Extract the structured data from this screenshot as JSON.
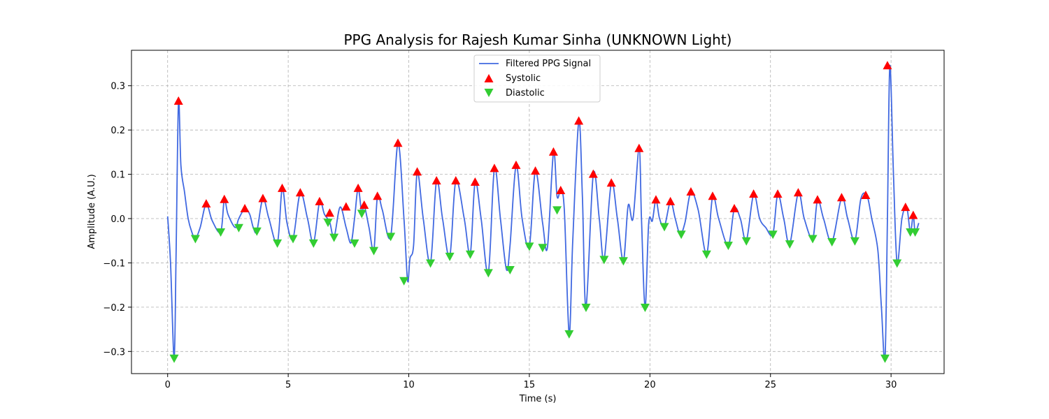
{
  "chart_data": {
    "type": "line",
    "title": "PPG Analysis for Rajesh Kumar Sinha (UNKNOWN Light)",
    "xlabel": "Time (s)",
    "ylabel": "Amplitude (A.U.)",
    "xlim": [
      -1.5,
      32.2
    ],
    "ylim": [
      -0.35,
      0.38
    ],
    "xticks": [
      0,
      5,
      10,
      15,
      20,
      25,
      30
    ],
    "yticks": [
      -0.3,
      -0.2,
      -0.1,
      0.0,
      0.1,
      0.2,
      0.3
    ],
    "xtick_labels": [
      "0",
      "5",
      "10",
      "15",
      "20",
      "25",
      "30"
    ],
    "ytick_labels": [
      "−0.3",
      "−0.2",
      "−0.1",
      "0.0",
      "0.1",
      "0.2",
      "0.3"
    ],
    "grid": true,
    "legend_position": "top-center",
    "colors": {
      "signal": "#4169e1",
      "systolic": "#ff0000",
      "diastolic": "#32cd32"
    },
    "series": [
      {
        "name": "Filtered PPG Signal",
        "kind": "line",
        "x": [
          0.0,
          0.12,
          0.27,
          0.35,
          0.45,
          0.55,
          0.7,
          0.85,
          1.0,
          1.15,
          1.35,
          1.6,
          1.85,
          2.2,
          2.35,
          2.5,
          2.8,
          2.95,
          3.2,
          3.4,
          3.55,
          3.7,
          3.95,
          4.2,
          4.55,
          4.75,
          4.95,
          5.2,
          5.5,
          5.8,
          6.05,
          6.3,
          6.5,
          6.72,
          6.9,
          7.15,
          7.4,
          7.6,
          7.75,
          7.9,
          8.05,
          8.15,
          8.35,
          8.55,
          8.7,
          8.9,
          9.25,
          9.55,
          9.8,
          9.95,
          10.05,
          10.2,
          10.35,
          10.6,
          10.9,
          11.15,
          11.4,
          11.7,
          11.95,
          12.3,
          12.55,
          12.75,
          13.0,
          13.3,
          13.55,
          13.8,
          14.05,
          14.2,
          14.45,
          14.7,
          15.0,
          15.25,
          15.55,
          15.75,
          16.0,
          16.15,
          16.3,
          16.45,
          16.65,
          16.8,
          17.05,
          17.2,
          17.35,
          17.65,
          17.9,
          18.1,
          18.4,
          18.65,
          18.9,
          19.1,
          19.3,
          19.55,
          19.65,
          19.8,
          19.95,
          20.1,
          20.25,
          20.4,
          20.6,
          20.85,
          21.05,
          21.25,
          21.45,
          21.7,
          22.0,
          22.35,
          22.6,
          22.85,
          23.25,
          23.5,
          23.75,
          24.0,
          24.3,
          24.55,
          24.8,
          25.1,
          25.3,
          25.55,
          25.8,
          26.15,
          26.4,
          26.75,
          26.95,
          27.2,
          27.55,
          27.95,
          28.2,
          28.5,
          28.75,
          29.0,
          29.2,
          29.45,
          29.6,
          29.75,
          29.85,
          29.95,
          30.1,
          30.25,
          30.45,
          30.65,
          30.8,
          30.92,
          31.0,
          31.15
        ],
        "y": [
          0.005,
          -0.1,
          -0.315,
          -0.08,
          0.265,
          0.12,
          0.06,
          0.0,
          -0.03,
          -0.045,
          -0.02,
          0.033,
          -0.005,
          -0.03,
          0.043,
          0.01,
          -0.02,
          0.0,
          0.022,
          0.01,
          -0.02,
          -0.028,
          0.045,
          0.0,
          -0.055,
          0.068,
          -0.01,
          -0.045,
          0.058,
          0.0,
          -0.055,
          0.038,
          0.01,
          -0.008,
          -0.042,
          0.026,
          -0.02,
          -0.055,
          0.0,
          0.068,
          0.012,
          0.03,
          -0.02,
          -0.072,
          0.05,
          0.02,
          -0.04,
          0.17,
          0.0,
          -0.14,
          -0.09,
          -0.06,
          0.105,
          0.0,
          -0.1,
          0.085,
          0.0,
          -0.085,
          0.085,
          0.0,
          -0.08,
          0.082,
          0.0,
          -0.122,
          0.113,
          0.0,
          -0.115,
          -0.06,
          0.12,
          0.0,
          -0.062,
          0.107,
          -0.01,
          -0.065,
          0.15,
          0.05,
          0.063,
          0.02,
          -0.26,
          -0.05,
          0.22,
          0.05,
          -0.2,
          0.1,
          0.0,
          -0.092,
          0.08,
          0.0,
          -0.095,
          0.03,
          0.0,
          0.158,
          0.0,
          -0.2,
          -0.01,
          -0.005,
          0.042,
          0.0,
          -0.018,
          0.038,
          0.0,
          -0.035,
          -0.01,
          0.06,
          0.02,
          -0.08,
          0.05,
          0.0,
          -0.06,
          0.022,
          0.0,
          -0.05,
          0.055,
          0.0,
          -0.02,
          -0.035,
          0.055,
          0.0,
          -0.057,
          0.058,
          0.0,
          -0.045,
          0.042,
          0.0,
          -0.052,
          0.047,
          0.0,
          -0.05,
          0.045,
          0.052,
          0.0,
          -0.07,
          -0.2,
          -0.315,
          0.0,
          0.345,
          0.1,
          -0.1,
          0.0,
          0.025,
          -0.03,
          0.007,
          -0.03,
          -0.01
        ]
      },
      {
        "name": "Systolic",
        "kind": "marker-up",
        "x": [
          0.45,
          1.6,
          2.35,
          3.2,
          3.95,
          4.75,
          5.5,
          6.3,
          6.72,
          7.4,
          7.9,
          8.15,
          8.7,
          9.55,
          10.35,
          11.15,
          11.95,
          12.75,
          13.55,
          14.45,
          15.25,
          16.0,
          16.3,
          17.05,
          17.65,
          18.4,
          19.55,
          20.25,
          20.85,
          21.7,
          22.6,
          23.5,
          24.3,
          25.3,
          26.15,
          26.95,
          27.95,
          28.95,
          29.85,
          30.6,
          30.92
        ],
        "y": [
          0.265,
          0.033,
          0.043,
          0.022,
          0.045,
          0.068,
          0.058,
          0.038,
          0.012,
          0.026,
          0.068,
          0.03,
          0.05,
          0.17,
          0.105,
          0.085,
          0.085,
          0.082,
          0.113,
          0.12,
          0.107,
          0.15,
          0.063,
          0.22,
          0.1,
          0.08,
          0.158,
          0.042,
          0.038,
          0.06,
          0.05,
          0.022,
          0.055,
          0.055,
          0.058,
          0.042,
          0.047,
          0.052,
          0.345,
          0.025,
          0.007
        ]
      },
      {
        "name": "Diastolic",
        "kind": "marker-down",
        "x": [
          0.27,
          1.15,
          2.2,
          2.95,
          3.7,
          4.55,
          5.2,
          6.05,
          6.65,
          6.9,
          7.75,
          8.05,
          8.55,
          9.25,
          9.8,
          10.9,
          11.7,
          12.55,
          13.3,
          14.2,
          15.0,
          15.55,
          16.15,
          16.65,
          17.35,
          18.1,
          18.9,
          19.8,
          20.6,
          21.3,
          22.35,
          23.25,
          24.0,
          25.1,
          25.8,
          26.75,
          27.55,
          28.5,
          29.75,
          30.25,
          30.8,
          31.0
        ],
        "y": [
          -0.315,
          -0.045,
          -0.03,
          -0.02,
          -0.028,
          -0.055,
          -0.045,
          -0.055,
          -0.008,
          -0.042,
          -0.055,
          0.012,
          -0.072,
          -0.04,
          -0.14,
          -0.1,
          -0.085,
          -0.08,
          -0.122,
          -0.115,
          -0.062,
          -0.065,
          0.02,
          -0.26,
          -0.2,
          -0.092,
          -0.095,
          -0.2,
          -0.018,
          -0.035,
          -0.08,
          -0.06,
          -0.05,
          -0.035,
          -0.057,
          -0.045,
          -0.052,
          -0.05,
          -0.315,
          -0.1,
          -0.03,
          -0.03
        ]
      }
    ]
  }
}
